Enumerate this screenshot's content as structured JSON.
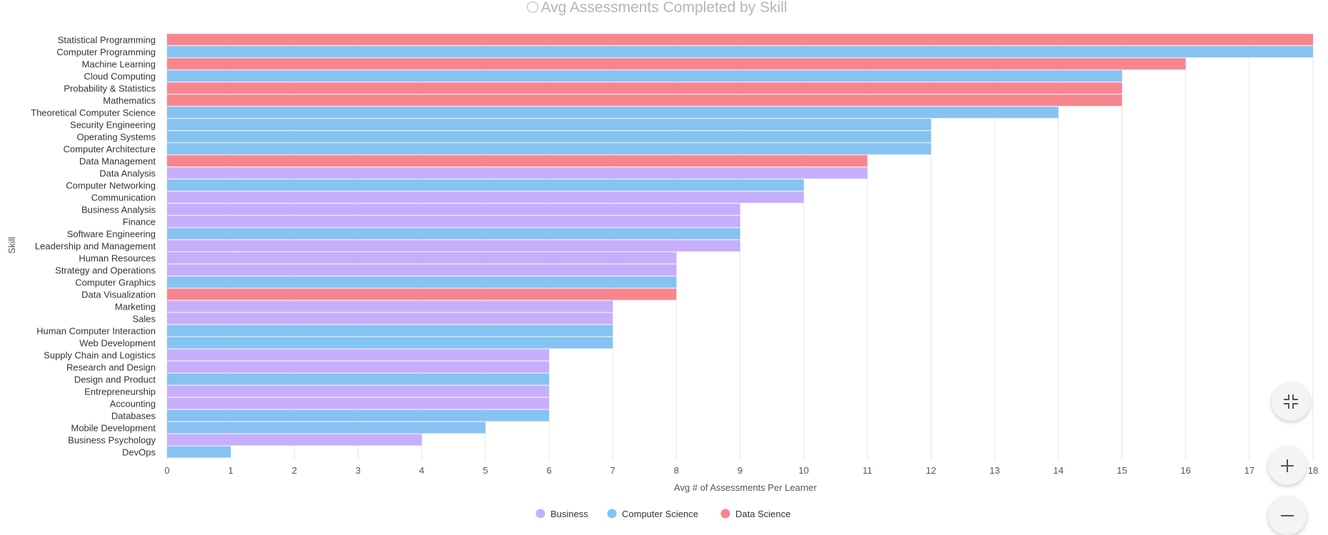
{
  "chart_data": {
    "type": "bar",
    "orientation": "horizontal",
    "title": "Avg Assessments Completed by Skill",
    "xlabel": "Avg # of Assessments Per Learner",
    "ylabel": "Skill",
    "xlim": [
      0,
      18
    ],
    "x_ticks": [
      0,
      1,
      2,
      3,
      4,
      5,
      6,
      7,
      8,
      9,
      10,
      11,
      12,
      13,
      14,
      15,
      16,
      17,
      18
    ],
    "grid": "vertical",
    "legend_position": "bottom-center",
    "legend": [
      {
        "name": "Business",
        "color": "#c7aefc"
      },
      {
        "name": "Computer Science",
        "color": "#86c2f2"
      },
      {
        "name": "Data Science",
        "color": "#f7868f"
      }
    ],
    "categories": [
      "Statistical Programming",
      "Computer Programming",
      "Machine Learning",
      "Cloud Computing",
      "Probability & Statistics",
      "Mathematics",
      "Theoretical Computer Science",
      "Security Engineering",
      "Operating Systems",
      "Computer Architecture",
      "Data Management",
      "Data Analysis",
      "Computer Networking",
      "Communication",
      "Business Analysis",
      "Finance",
      "Software Engineering",
      "Leadership and Management",
      "Human Resources",
      "Strategy and Operations",
      "Computer Graphics",
      "Data Visualization",
      "Marketing",
      "Sales",
      "Human Computer Interaction",
      "Web Development",
      "Supply Chain and Logistics",
      "Research and Design",
      "Design and Product",
      "Entrepreneurship",
      "Accounting",
      "Databases",
      "Mobile Development",
      "Business Psychology",
      "DevOps"
    ],
    "values": [
      18,
      18,
      16,
      15,
      15,
      15,
      14,
      12,
      12,
      12,
      11,
      11,
      10,
      10,
      9,
      9,
      9,
      9,
      8,
      8,
      8,
      8,
      7,
      7,
      7,
      7,
      6,
      6,
      6,
      6,
      6,
      6,
      5,
      4,
      1
    ],
    "groups": [
      "Data Science",
      "Computer Science",
      "Data Science",
      "Computer Science",
      "Data Science",
      "Data Science",
      "Computer Science",
      "Computer Science",
      "Computer Science",
      "Computer Science",
      "Data Science",
      "Business",
      "Computer Science",
      "Business",
      "Business",
      "Business",
      "Computer Science",
      "Business",
      "Business",
      "Business",
      "Computer Science",
      "Data Science",
      "Business",
      "Business",
      "Computer Science",
      "Computer Science",
      "Business",
      "Business",
      "Computer Science",
      "Business",
      "Business",
      "Computer Science",
      "Computer Science",
      "Business",
      "Computer Science"
    ]
  },
  "controls": {
    "collapse_icon": "collapse-icon",
    "zoom_in_icon": "plus-icon",
    "zoom_out_icon": "minus-icon"
  }
}
